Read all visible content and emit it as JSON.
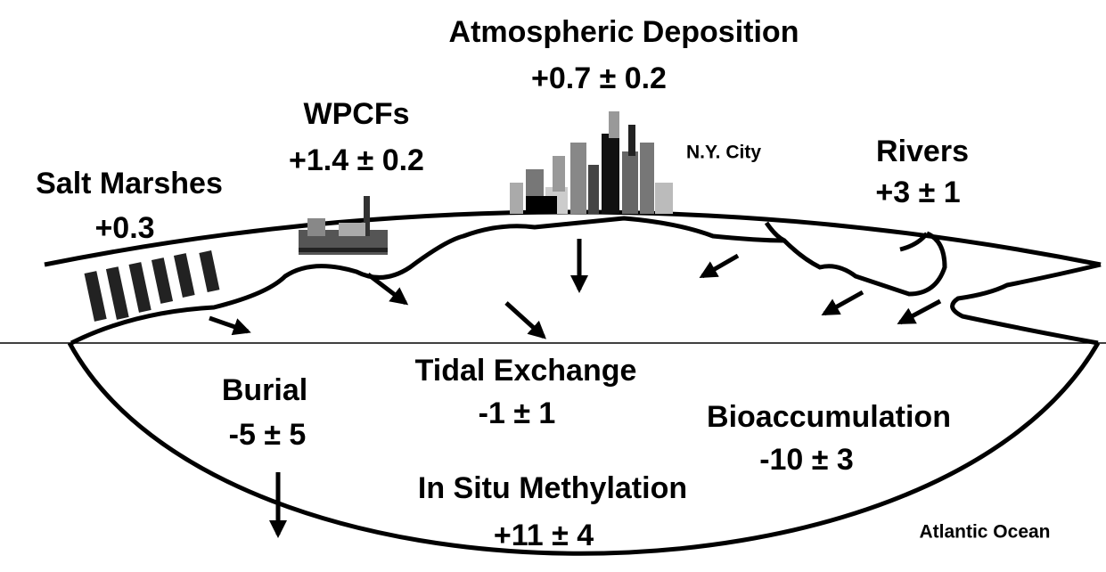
{
  "title": "Atmospheric Deposition",
  "title_value": "+0.7 ± 0.2",
  "nodes": [
    {
      "label": "WPCFs",
      "value": "+1.4 ± 0.2"
    },
    {
      "label": "Salt Marshes",
      "value": "+0.3"
    },
    {
      "label": "Rivers",
      "value": "+3 ± 1"
    },
    {
      "label": "Tidal Exchange",
      "value": "-1 ± 1"
    },
    {
      "label": "Burial",
      "value": "-5 ± 5"
    },
    {
      "label": "Bioaccumulation",
      "value": "-10 ± 3"
    },
    {
      "label": "In Situ Methylation",
      "value": "+11 ± 4"
    }
  ],
  "places": [
    "N.Y. City",
    "Atlantic Ocean"
  ]
}
